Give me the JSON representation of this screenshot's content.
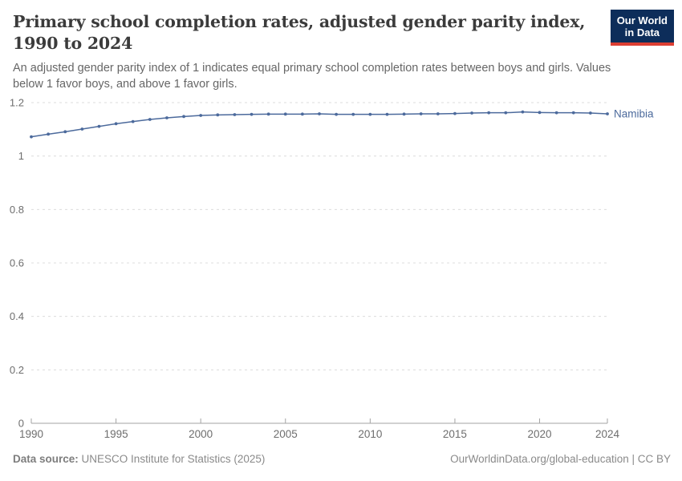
{
  "header": {
    "title": "Primary school completion rates, adjusted gender parity index, 1990 to 2024",
    "subtitle": "An adjusted gender parity index of 1 indicates equal primary school completion rates between boys and girls. Values below 1 favor boys, and above 1 favor girls.",
    "logo": {
      "line1": "Our World",
      "line2": "in Data",
      "bg_color": "#0d2d5a",
      "bar_color": "#dc3e32"
    }
  },
  "chart_data": {
    "type": "line",
    "title": "Primary school completion rates, adjusted gender parity index, 1990 to 2024",
    "xlabel": "",
    "ylabel": "",
    "xlim": [
      1990,
      2024
    ],
    "ylim": [
      0,
      1.2
    ],
    "xticks": [
      1990,
      1995,
      2000,
      2005,
      2010,
      2015,
      2020,
      2024
    ],
    "yticks": [
      0,
      0.2,
      0.4,
      0.6,
      0.8,
      1,
      1.2
    ],
    "grid": "horizontal-dashed",
    "legend_position": "end-of-line-label",
    "series": [
      {
        "name": "Namibia",
        "color": "#4c6a9c",
        "x": [
          1990,
          1991,
          1992,
          1993,
          1994,
          1995,
          1996,
          1997,
          1998,
          1999,
          2000,
          2001,
          2002,
          2003,
          2004,
          2005,
          2006,
          2007,
          2008,
          2009,
          2010,
          2011,
          2012,
          2013,
          2014,
          2015,
          2016,
          2017,
          2018,
          2019,
          2020,
          2021,
          2022,
          2023,
          2024
        ],
        "values": [
          1.072,
          1.082,
          1.091,
          1.101,
          1.111,
          1.121,
          1.129,
          1.137,
          1.143,
          1.148,
          1.152,
          1.154,
          1.155,
          1.156,
          1.157,
          1.157,
          1.157,
          1.158,
          1.156,
          1.156,
          1.156,
          1.156,
          1.157,
          1.158,
          1.158,
          1.159,
          1.161,
          1.162,
          1.162,
          1.165,
          1.163,
          1.162,
          1.162,
          1.161,
          1.158
        ]
      }
    ],
    "colors": {
      "grid": "#dcdcdc",
      "axis": "#a3a3a3",
      "tick_text": "#6e6e6e"
    }
  },
  "footer": {
    "source_label": "Data source:",
    "source_text": "UNESCO Institute for Statistics (2025)",
    "rights_text": "OurWorldinData.org/global-education | CC BY"
  }
}
